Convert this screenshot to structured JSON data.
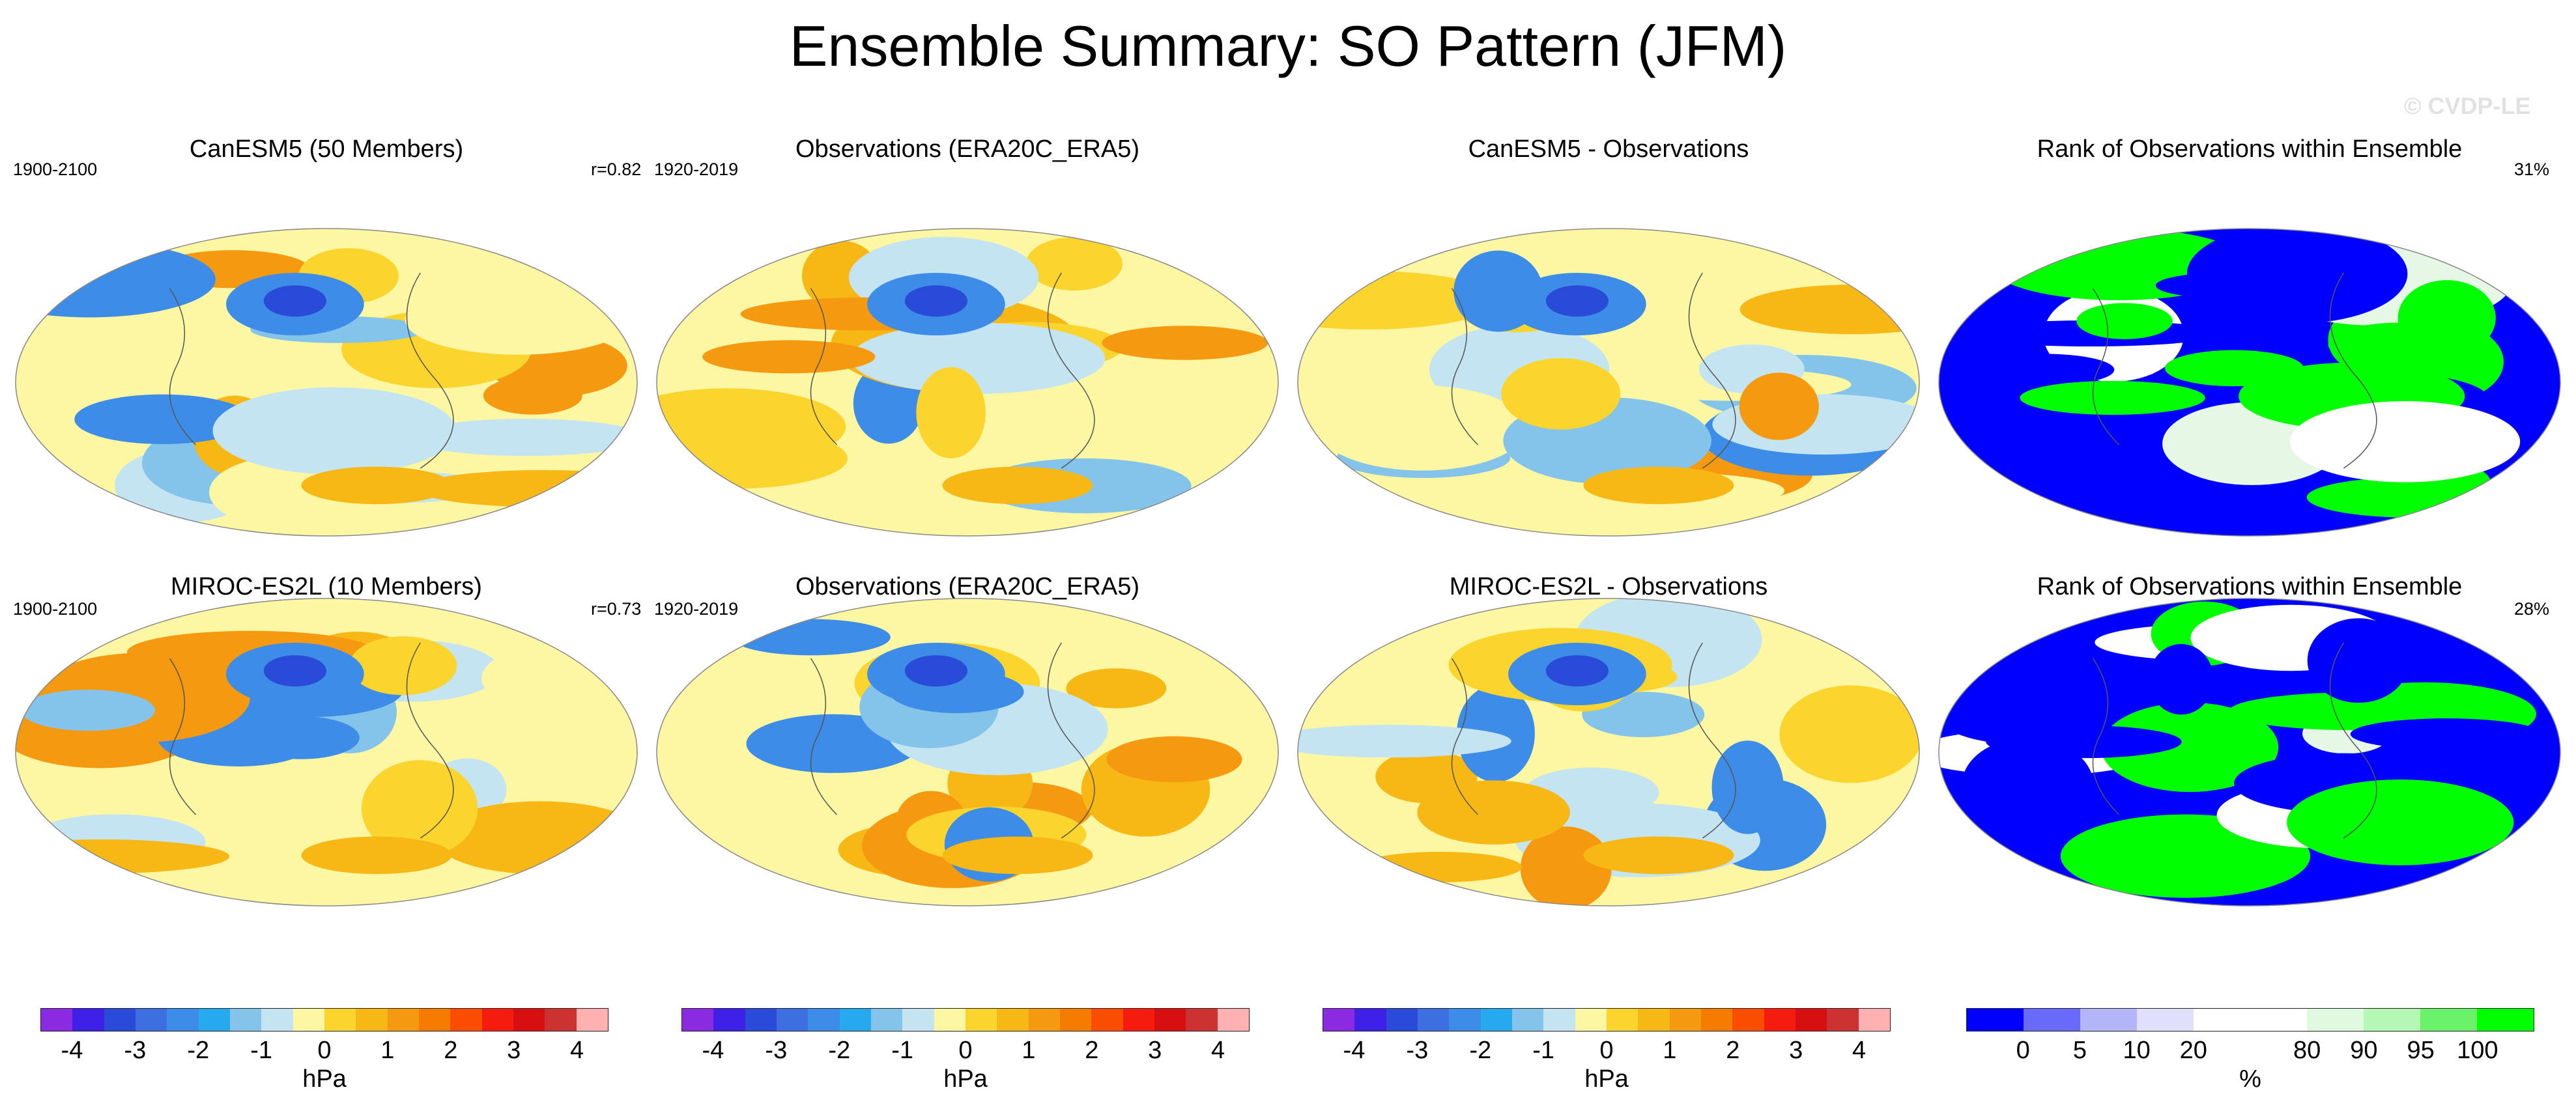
{
  "chart_data": {
    "type": "heatmap",
    "title": "Ensemble Summary: SO Pattern (JFM)",
    "credit": "© CVDP-LE",
    "units": "hPa",
    "panels": [
      {
        "id": "canesm5-ensemble",
        "title": "CanESM5 (50 Members)",
        "left_label": "1900-2100",
        "right_label": "r=0.82",
        "kind": "slp"
      },
      {
        "id": "obs-row1",
        "title": "Observations (ERA20C_ERA5)",
        "left_label": "1920-2019",
        "right_label": "",
        "kind": "slp"
      },
      {
        "id": "canesm5-diff",
        "title": "CanESM5 - Observations",
        "left_label": "",
        "right_label": "",
        "kind": "slp"
      },
      {
        "id": "canesm5-rank",
        "title": "Rank of Observations within Ensemble",
        "left_label": "",
        "right_label": "31%",
        "kind": "rank"
      },
      {
        "id": "miroc-ensemble",
        "title": "MIROC-ES2L (10 Members)",
        "left_label": "1900-2100",
        "right_label": "r=0.73",
        "kind": "slp"
      },
      {
        "id": "obs-row2",
        "title": "Observations (ERA20C_ERA5)",
        "left_label": "1920-2019",
        "right_label": "",
        "kind": "slp"
      },
      {
        "id": "miroc-diff",
        "title": "MIROC-ES2L - Observations",
        "left_label": "",
        "right_label": "",
        "kind": "slp"
      },
      {
        "id": "miroc-rank",
        "title": "Rank of Observations within Ensemble",
        "left_label": "",
        "right_label": "28%",
        "kind": "rank"
      }
    ],
    "slp_colorbar": {
      "label": "hPa",
      "tick_labels": [
        "-4",
        "-3",
        "-2",
        "-1",
        "0",
        "1",
        "2",
        "3",
        "4"
      ],
      "tick_values": [
        -4,
        -3,
        -2,
        -1,
        0,
        1,
        2,
        3,
        4
      ],
      "range": [
        -4.5,
        4.5
      ],
      "colors": [
        "#8a2be2",
        "#3f20e6",
        "#2a4bd7",
        "#3e6fe0",
        "#3d8de8",
        "#27a9f0",
        "#84c3ea",
        "#c4e4f2",
        "#fdf7a4",
        "#fbd52e",
        "#f7b816",
        "#f59a10",
        "#f57c00",
        "#fa4d00",
        "#f51b0e",
        "#d70f10",
        "#cc3232",
        "#ffb0b0"
      ]
    },
    "rank_colorbar": {
      "label": "%",
      "tick_labels": [
        "0",
        "5",
        "10",
        "20",
        "80",
        "90",
        "95",
        "100"
      ],
      "tick_values": [
        0,
        5,
        10,
        20,
        80,
        90,
        95,
        100
      ],
      "colors": [
        "#0000ff",
        "#6a6afa",
        "#b4b4f8",
        "#e0e0fa",
        "#ffffff",
        "#ffffff",
        "#e0fae0",
        "#b4f8b4",
        "#6af26a",
        "#00ff00"
      ]
    }
  }
}
